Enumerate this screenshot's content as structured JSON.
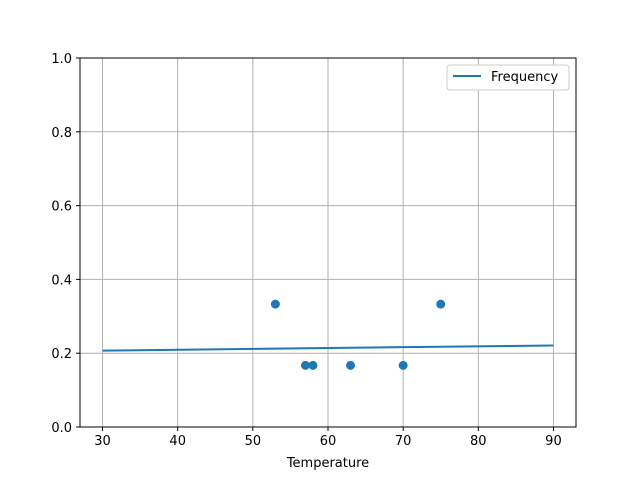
{
  "chart_data": {
    "type": "scatter",
    "title": "",
    "xlabel": "Temperature",
    "ylabel": "",
    "xlim": [
      27,
      93
    ],
    "ylim": [
      0,
      1.0
    ],
    "xticks": [
      "30",
      "40",
      "50",
      "60",
      "70",
      "80",
      "90"
    ],
    "yticks": [
      "0.0",
      "0.2",
      "0.4",
      "0.6",
      "0.8",
      "1.0"
    ],
    "grid": true,
    "legend_position": "top-right",
    "color": "#1f77b4",
    "series": [
      {
        "name": "Frequency",
        "kind": "line",
        "x": [
          30,
          90
        ],
        "y": [
          0.207,
          0.221
        ]
      },
      {
        "kind": "scatter",
        "x": [
          53,
          57,
          58,
          63,
          70,
          75
        ],
        "y": [
          0.333,
          0.167,
          0.167,
          0.167,
          0.167,
          0.333
        ]
      }
    ]
  }
}
